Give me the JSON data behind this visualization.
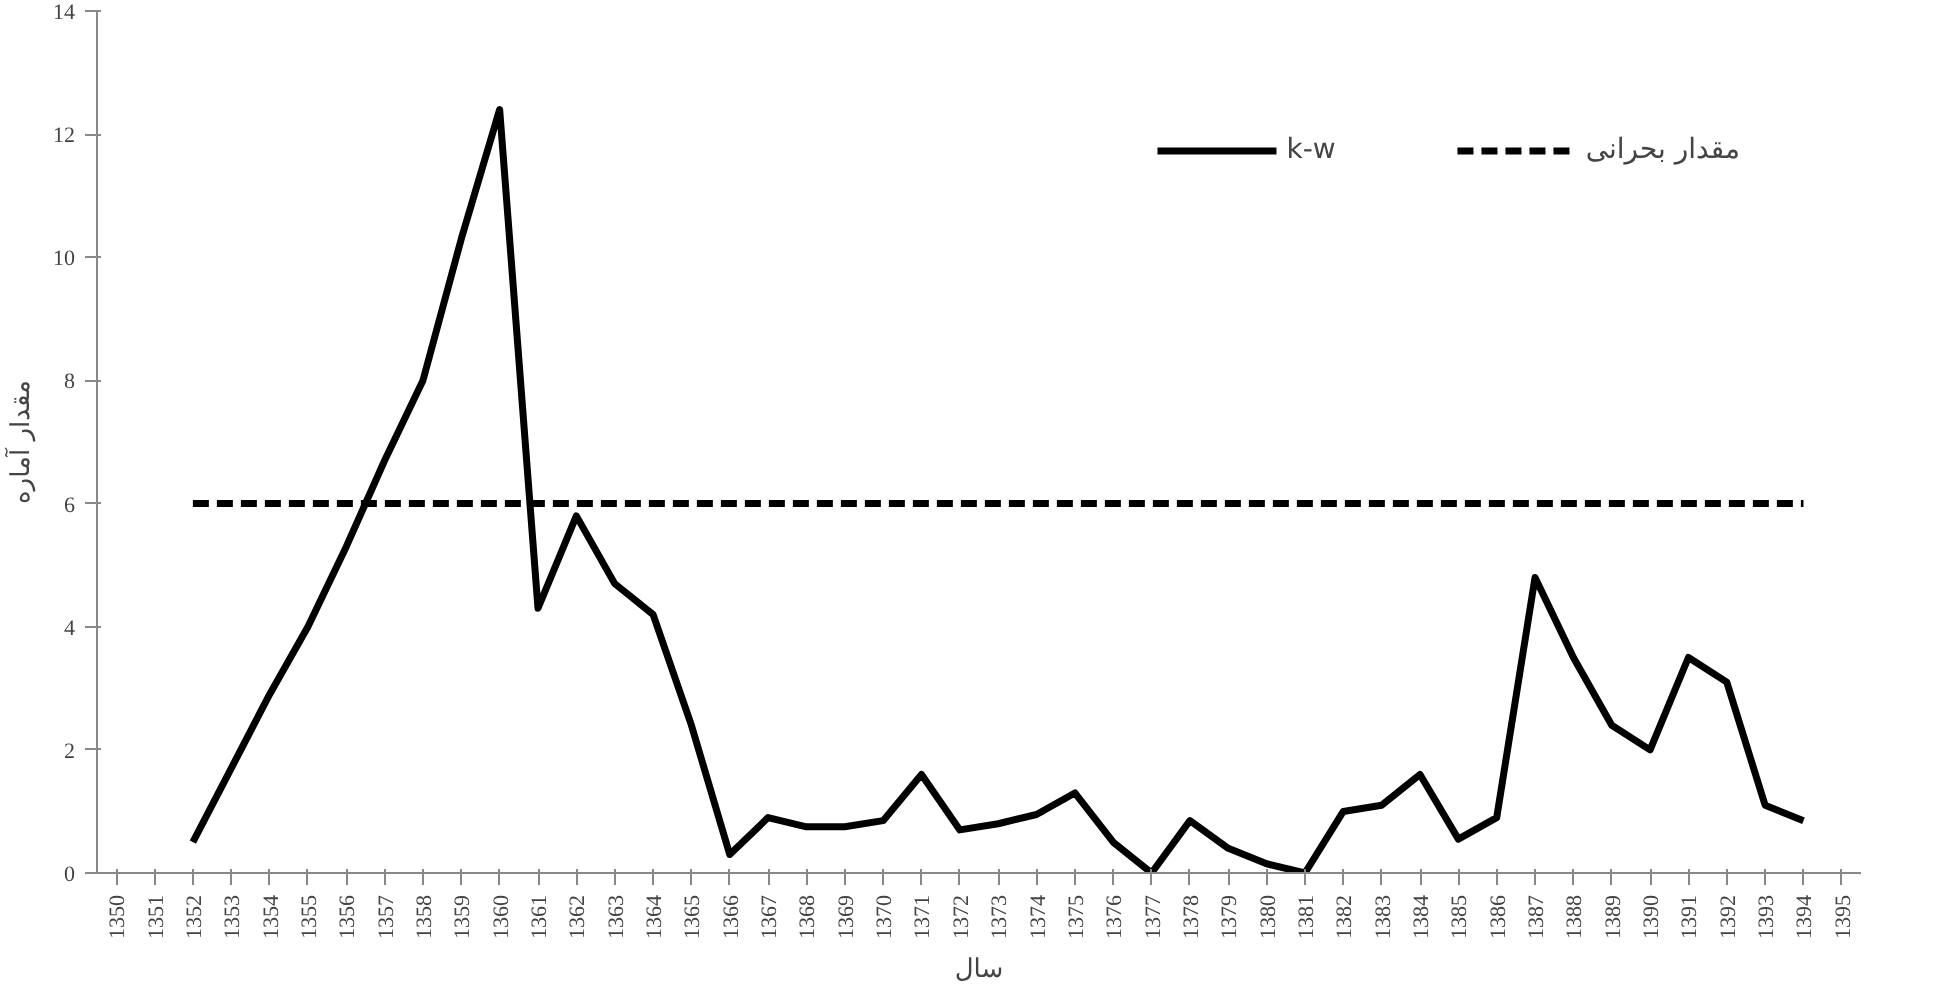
{
  "chart_data": {
    "type": "line",
    "xlabel": "سال",
    "ylabel": "مقدار آماره",
    "categories": [
      "1350",
      "1351",
      "1352",
      "1353",
      "1354",
      "1355",
      "1356",
      "1357",
      "1358",
      "1359",
      "1360",
      "1361",
      "1362",
      "1363",
      "1364",
      "1365",
      "1366",
      "1367",
      "1368",
      "1369",
      "1370",
      "1371",
      "1372",
      "1373",
      "1374",
      "1375",
      "1376",
      "1377",
      "1378",
      "1379",
      "1380",
      "1381",
      "1382",
      "1383",
      "1384",
      "1385",
      "1386",
      "1387",
      "1388",
      "1389",
      "1390",
      "1391",
      "1392",
      "1393",
      "1394",
      "1395"
    ],
    "ylim": [
      0,
      14
    ],
    "yticks": [
      0,
      2,
      4,
      6,
      8,
      10,
      12,
      14
    ],
    "grid": false,
    "legend": "top right",
    "marker": "none",
    "series": [
      {
        "name": "k-w",
        "color": "#000000",
        "line_style": "solid",
        "values": [
          null,
          null,
          0.5,
          1.7,
          2.9,
          4.0,
          5.3,
          6.7,
          8.0,
          10.3,
          12.4,
          4.3,
          5.8,
          4.7,
          4.2,
          2.4,
          0.3,
          0.9,
          0.75,
          0.75,
          0.85,
          1.6,
          0.7,
          0.8,
          0.95,
          1.3,
          0.5,
          0.0,
          0.85,
          0.4,
          0.15,
          0.0,
          1.0,
          1.1,
          1.6,
          0.55,
          0.9,
          4.8,
          3.5,
          2.4,
          2.0,
          3.5,
          3.1,
          1.1,
          0.85,
          null
        ]
      },
      {
        "name": "مقدار بحرانی",
        "color": "#000000",
        "line_style": "dashed",
        "values": [
          null,
          null,
          6,
          6,
          6,
          6,
          6,
          6,
          6,
          6,
          6,
          6,
          6,
          6,
          6,
          6,
          6,
          6,
          6,
          6,
          6,
          6,
          6,
          6,
          6,
          6,
          6,
          6,
          6,
          6,
          6,
          6,
          6,
          6,
          6,
          6,
          6,
          6,
          6,
          6,
          6,
          6,
          6,
          6,
          6,
          null
        ]
      }
    ]
  }
}
